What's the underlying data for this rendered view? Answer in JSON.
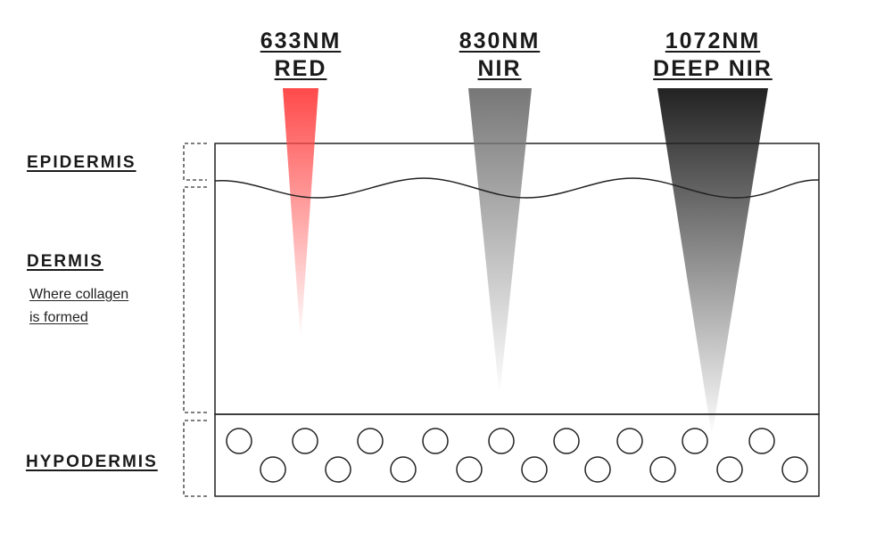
{
  "wavelengths": [
    {
      "nm": "633NM",
      "name": "RED",
      "color_top": "#ff4a4a",
      "color_bottom": "#ff4a4a",
      "depth": "dermis (upper)"
    },
    {
      "nm": "830NM",
      "name": "NIR",
      "color_top": "#777777",
      "color_bottom": "#777777",
      "depth": "dermis (mid)"
    },
    {
      "nm": "1072NM",
      "name": "DEEP NIR",
      "color_top": "#222222",
      "color_bottom": "#222222",
      "depth": "hypodermis (top)"
    }
  ],
  "layers": {
    "epidermis": "EPIDERMIS",
    "dermis": "DERMIS",
    "dermis_note_line1": "Where collagen",
    "dermis_note_line2": "is formed",
    "hypodermis": "HYPODERMIS"
  },
  "colors": {
    "line": "#222222",
    "bracket": "#333333",
    "background": "#ffffff"
  }
}
